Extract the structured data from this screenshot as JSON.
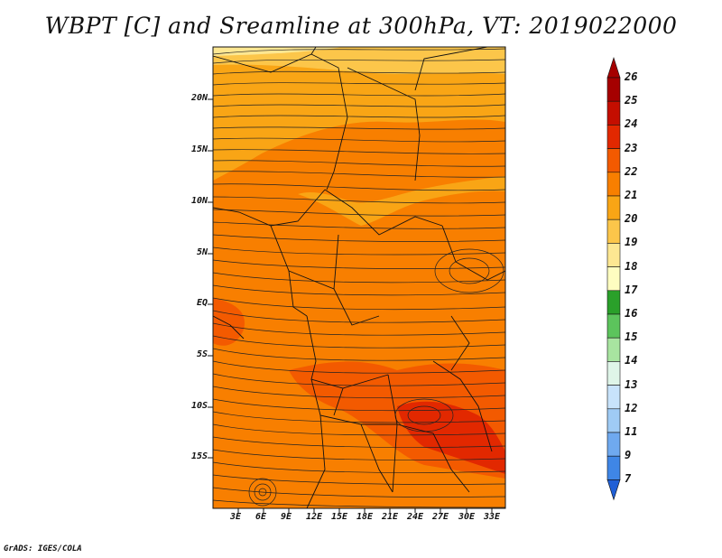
{
  "title": "WBPT [C] and Sreamline at 300hPa, VT: 2019022000",
  "map": {
    "lat_labels": [
      "20N",
      "15N",
      "10N",
      "5N",
      "EQ",
      "5S",
      "10S",
      "15S"
    ],
    "lon_labels": [
      "3E",
      "6E",
      "9E",
      "12E",
      "15E",
      "18E",
      "21E",
      "24E",
      "27E",
      "30E",
      "33E"
    ]
  },
  "colorbar": {
    "labels": [
      "26",
      "25",
      "24",
      "23",
      "22",
      "21",
      "20",
      "19",
      "18",
      "17",
      "16",
      "15",
      "14",
      "13",
      "12",
      "11",
      "9",
      "7"
    ],
    "colors": [
      "#a50000",
      "#c40e00",
      "#e22800",
      "#f35a00",
      "#f87f00",
      "#f9a515",
      "#fcc64a",
      "#fde792",
      "#fefdc0",
      "#2aa02a",
      "#5cc45c",
      "#a8e4a0",
      "#dff5e8",
      "#c8e3fb",
      "#9fcbf5",
      "#6fa9ef",
      "#3f86e6",
      "#1f5fd6"
    ]
  },
  "credit": "GrADS: IGES/COLA"
}
